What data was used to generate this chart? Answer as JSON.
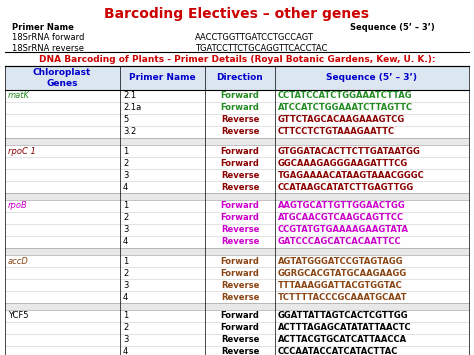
{
  "title": "Barcoding Electives – other genes",
  "title_color": "#cc0000",
  "subtitle": "DNA Barcoding of Plants - Primer Details (Royal Botanic Gardens, Kew, U. K.):",
  "subtitle_color": "#cc0000",
  "primer_header_left": "Primer Name",
  "primer_header_right": "Sequence (5’ – 3’)",
  "top_primers": [
    {
      "name": "18SrRNA forward",
      "seq": "AACCTGGTTGATCCTGCCAGT"
    },
    {
      "name": "18SrRNA reverse",
      "seq": "TGATCCTTCTGCAGGTTCACCTAC"
    }
  ],
  "col_headers": [
    "Chloroplast\nGenes",
    "Primer Name",
    "Direction",
    "Sequence (5’ – 3’)"
  ],
  "col_header_color": "#0000cc",
  "table_data": [
    {
      "gene": "matK",
      "gene_color": "#228B22",
      "gene_italic": true,
      "gene_underline": true,
      "rows": [
        {
          "primer": "2.1",
          "dir": "Forward",
          "seq": "CCTATCCATCTGGAAATCTTAG"
        },
        {
          "primer": "2.1a",
          "dir": "Forward",
          "seq": "ATCCATCTGGAAATCTTAGTTC"
        },
        {
          "primer": "5",
          "dir": "Reverse",
          "seq": "GTTCTAGCACAAGAAAGTCG"
        },
        {
          "primer": "3.2",
          "dir": "Reverse",
          "seq": "CTTCCTCTGTAAAGAATTC"
        }
      ],
      "forward_color": "#228B22",
      "reverse_color": "#8B0000"
    },
    {
      "gene": "rpoC 1",
      "gene_color": "#8B0000",
      "gene_italic": true,
      "gene_underline": true,
      "rows": [
        {
          "primer": "1",
          "dir": "Forward",
          "seq": "GTGGATACACTTCTTGATAATGG"
        },
        {
          "primer": "2",
          "dir": "Forward",
          "seq": "GGCAAAGAGGGAAGATTTCG"
        },
        {
          "primer": "3",
          "dir": "Reverse",
          "seq": "TGAGAAAACATAAGTAAACGGGC"
        },
        {
          "primer": "4",
          "dir": "Reverse",
          "seq": "CCATAAGCATATCTTGAGTTGG"
        }
      ],
      "forward_color": "#8B0000",
      "reverse_color": "#8B0000"
    },
    {
      "gene": "rpoB",
      "gene_color": "#cc00cc",
      "gene_italic": true,
      "gene_underline": true,
      "rows": [
        {
          "primer": "1",
          "dir": "Forward",
          "seq": "AAGTGCATTGTTGGAACTGG"
        },
        {
          "primer": "2",
          "dir": "Forward",
          "seq": "ATGCAACGTCAAGCAGTTCC"
        },
        {
          "primer": "3",
          "dir": "Reverse",
          "seq": "CCGTATGTGAAAAGAAGTATA"
        },
        {
          "primer": "4",
          "dir": "Reverse",
          "seq": "GATCCCAGCATCACAATTCC"
        }
      ],
      "forward_color": "#cc00cc",
      "reverse_color": "#cc00cc"
    },
    {
      "gene": "accD",
      "gene_color": "#8B4513",
      "gene_italic": true,
      "gene_underline": true,
      "rows": [
        {
          "primer": "1",
          "dir": "Forward",
          "seq": "AGTATGGGATCCGTAGTAGG"
        },
        {
          "primer": "2",
          "dir": "Forward",
          "seq": "GGRGCACGTATGCAAGAAGG"
        },
        {
          "primer": "3",
          "dir": "Reverse",
          "seq": "TTTAAAGGATTACGTGGTAC"
        },
        {
          "primer": "4",
          "dir": "Reverse",
          "seq": "TCTTTTACCCGCAAATGCAAT"
        }
      ],
      "forward_color": "#8B4513",
      "reverse_color": "#8B4513"
    },
    {
      "gene": "YCF5",
      "gene_color": "#000000",
      "gene_italic": false,
      "gene_underline": false,
      "rows": [
        {
          "primer": "1",
          "dir": "Forward",
          "seq": "GGATTATTAGTCACTCGTTGG"
        },
        {
          "primer": "2",
          "dir": "Forward",
          "seq": "ACTTTAGAGCATATATTAACTC"
        },
        {
          "primer": "3",
          "dir": "Reverse",
          "seq": "ACTTACGTGCATCATTAACCA"
        },
        {
          "primer": "4",
          "dir": "Reverse",
          "seq": "CCCAATACCATCATACTTAC"
        }
      ],
      "forward_color": "#000000",
      "reverse_color": "#000000"
    }
  ]
}
